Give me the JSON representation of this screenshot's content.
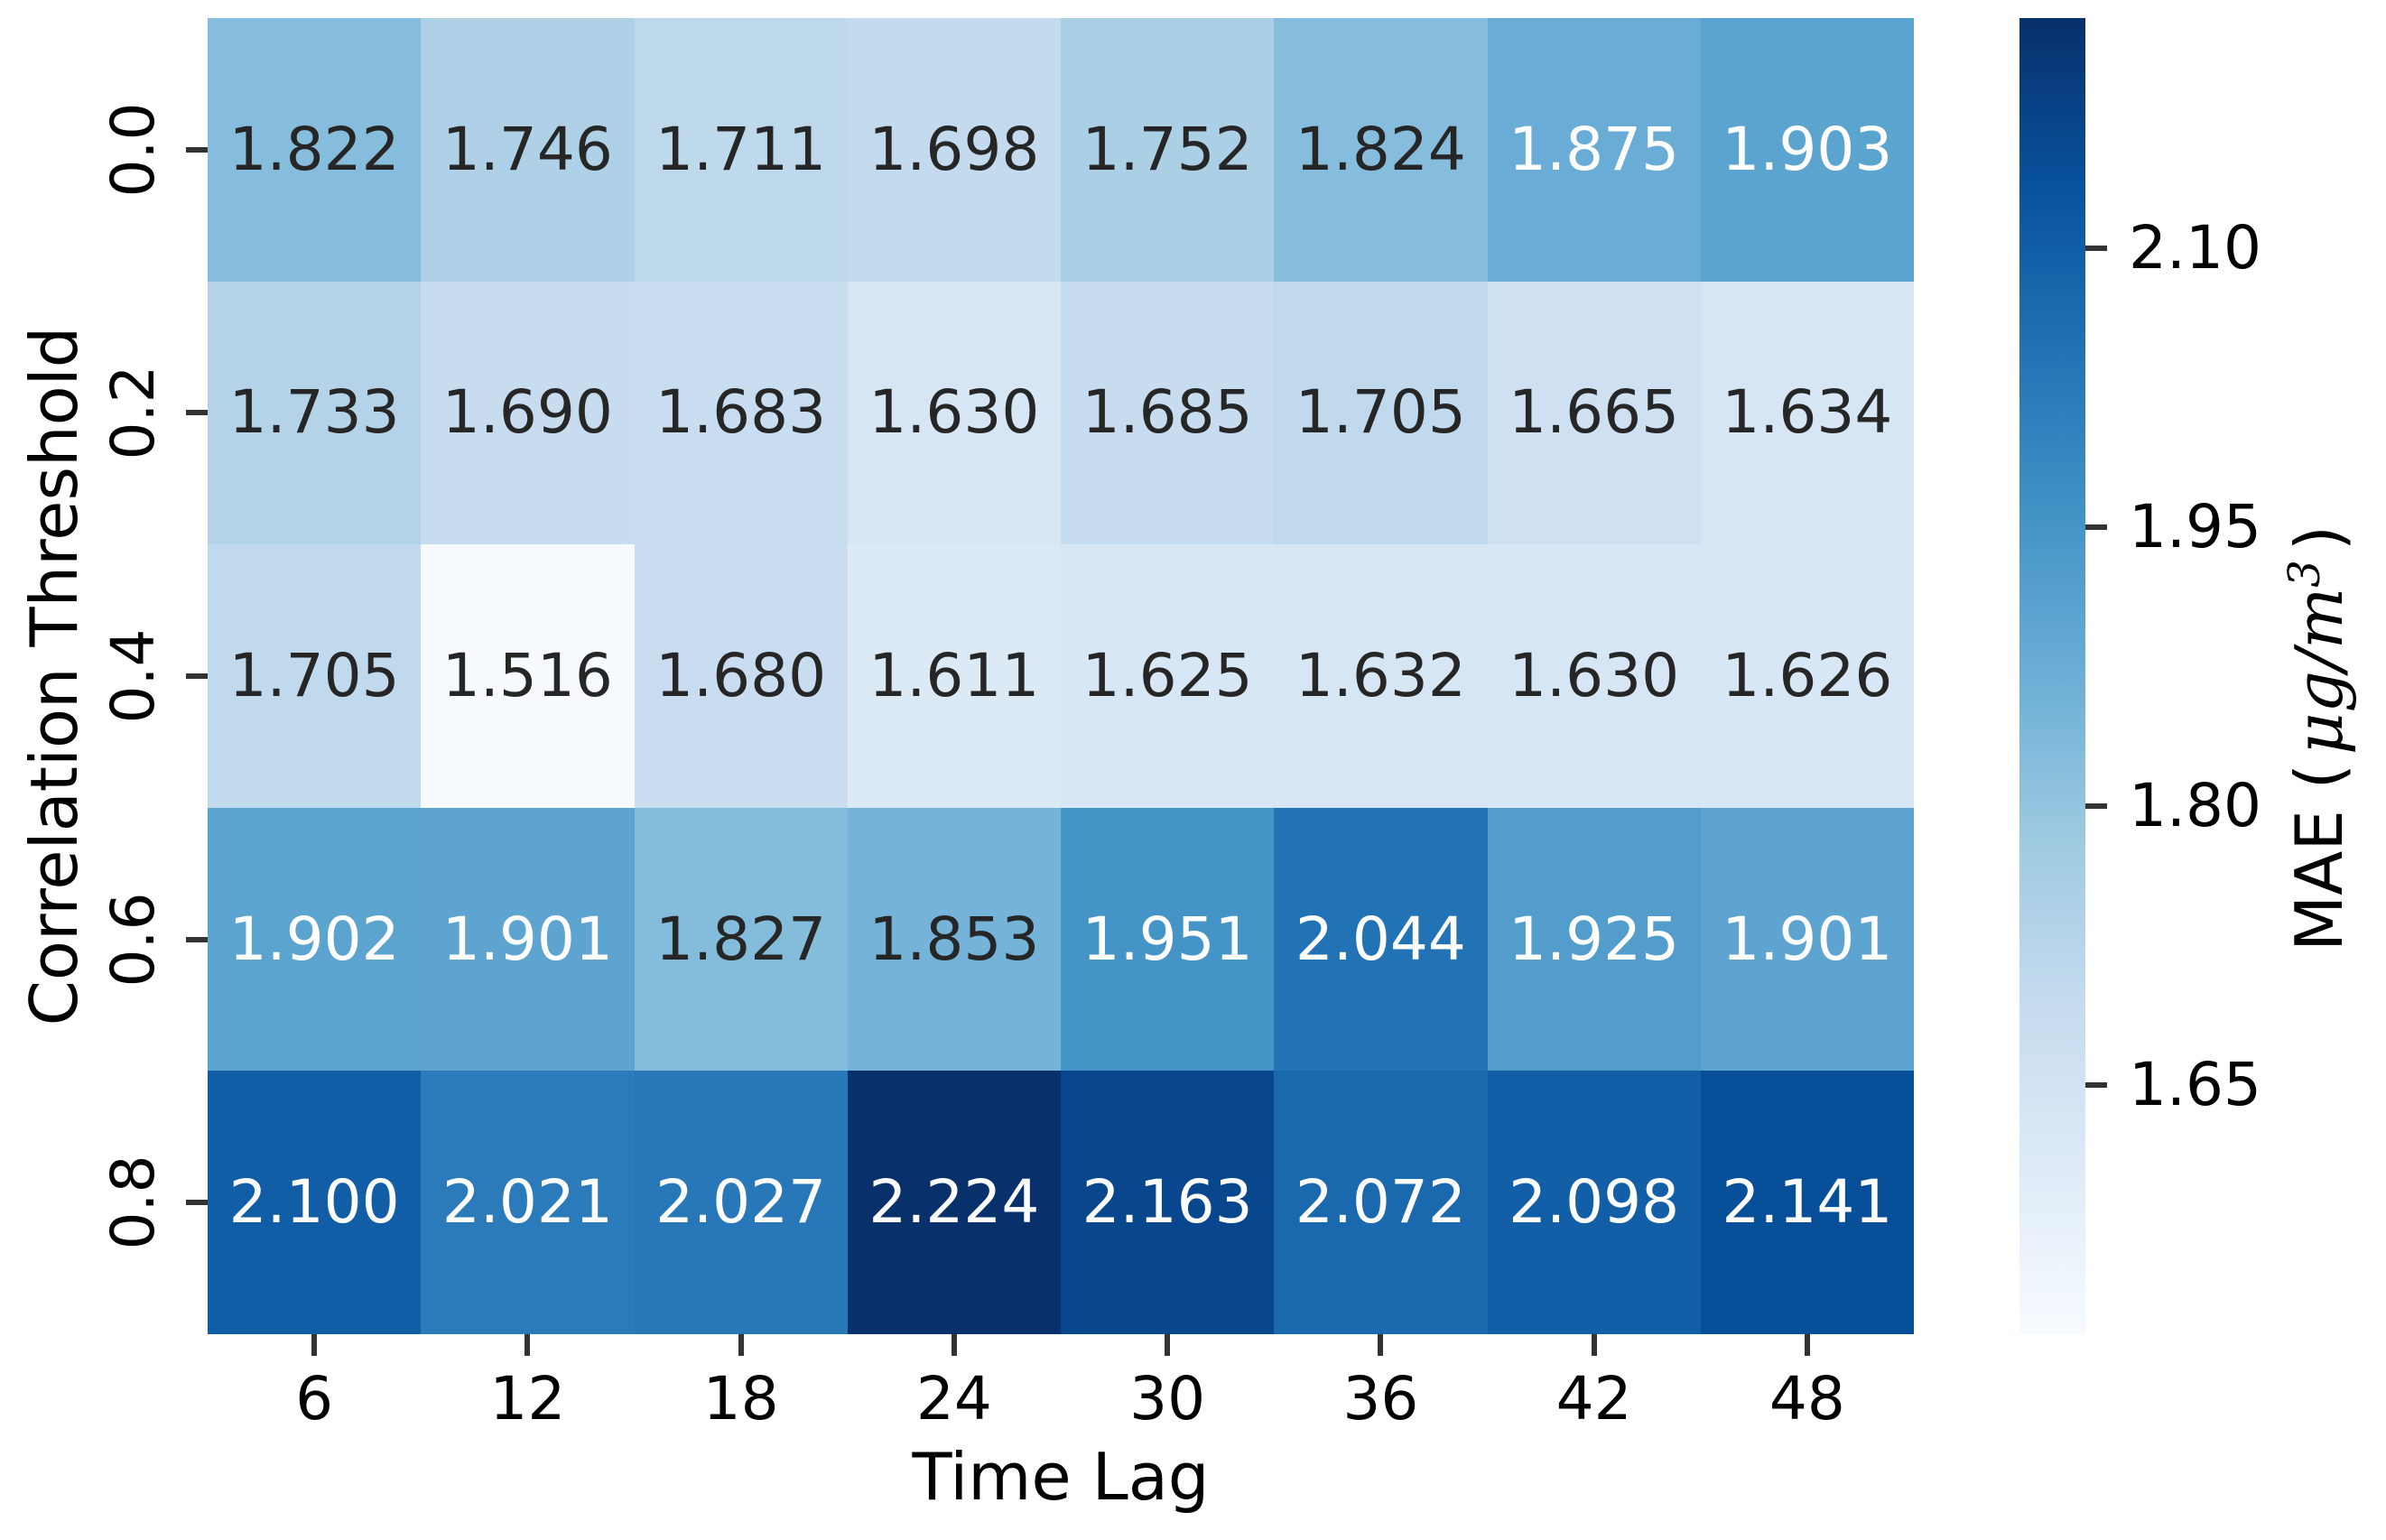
{
  "chart_data": {
    "type": "heatmap",
    "title": "",
    "xlabel": "Time Lag",
    "ylabel": "Correlation Threshold",
    "x_categories": [
      "6",
      "12",
      "18",
      "24",
      "30",
      "36",
      "42",
      "48"
    ],
    "y_categories": [
      "0.0",
      "0.2",
      "0.4",
      "0.6",
      "0.8"
    ],
    "values": [
      [
        1.822,
        1.746,
        1.711,
        1.698,
        1.752,
        1.824,
        1.875,
        1.903
      ],
      [
        1.733,
        1.69,
        1.683,
        1.63,
        1.685,
        1.705,
        1.665,
        1.634
      ],
      [
        1.705,
        1.516,
        1.68,
        1.611,
        1.625,
        1.632,
        1.63,
        1.626
      ],
      [
        1.902,
        1.901,
        1.827,
        1.853,
        1.951,
        2.044,
        1.925,
        1.901
      ],
      [
        2.1,
        2.021,
        2.027,
        2.224,
        2.163,
        2.072,
        2.098,
        2.141
      ]
    ],
    "value_decimals": 3,
    "vmin": 1.516,
    "vmax": 2.224,
    "colormap": "Blues",
    "colormap_stops": [
      "#f7fbff",
      "#deebf7",
      "#c6dbef",
      "#9ecae1",
      "#6baed6",
      "#4292c6",
      "#2171b5",
      "#08519c",
      "#08306b"
    ],
    "grid": false,
    "colorbar": {
      "label_prefix": "MAE (",
      "label_unit": "μg/m",
      "label_sup": "3",
      "label_suffix": ")",
      "tick_labels": [
        "2.10",
        "1.95",
        "1.80",
        "1.65"
      ],
      "tick_values": [
        2.1,
        1.95,
        1.8,
        1.65
      ]
    },
    "annotation_dark_color": "#262626",
    "annotation_light_color": "#ffffff"
  }
}
